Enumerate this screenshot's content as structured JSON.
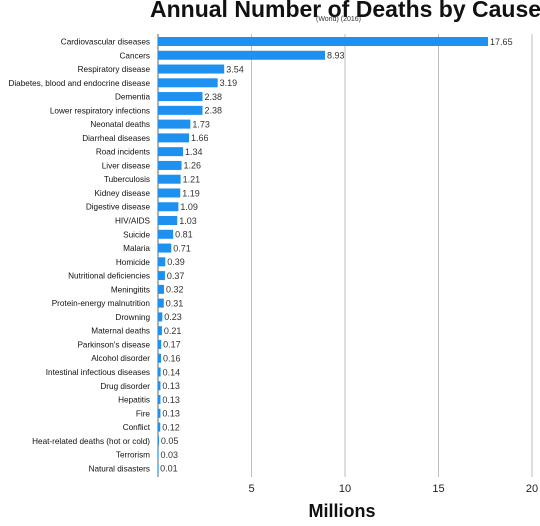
{
  "chart_data": {
    "type": "bar",
    "orientation": "horizontal",
    "title": "Annual Number of Deaths by Cause",
    "subtitle": "(World) (2016)",
    "xlabel": "Millions",
    "ylabel": "",
    "xlim": [
      0,
      20
    ],
    "xticks": [
      5,
      10,
      15,
      20
    ],
    "grid": true,
    "bar_color": "#1e90f0",
    "categories": [
      "Cardiovascular diseases",
      "Cancers",
      "Respiratory disease",
      "Diabetes, blood and endocrine disease",
      "Dementia",
      "Lower respiratory infections",
      "Neonatal deaths",
      "Diarrheal diseases",
      "Road incidents",
      "Liver disease",
      "Tuberculosis",
      "Kidney disease",
      "Digestive disease",
      "HIV/AIDS",
      "Suicide",
      "Malaria",
      "Homicide",
      "Nutritional deficiencies",
      "Meningitits",
      "Protein-energy malnutrition",
      "Drowning",
      "Maternal deaths",
      "Parkinson's disease",
      "Alcohol disorder",
      "Intestinal infectious diseases",
      "Drug disorder",
      "Hepatitis",
      "Fire",
      "Conflict",
      "Heat-related deaths (hot or cold)",
      "Terrorism",
      "Natural disasters"
    ],
    "values": [
      17.65,
      8.93,
      3.54,
      3.19,
      2.38,
      2.38,
      1.73,
      1.66,
      1.34,
      1.26,
      1.21,
      1.19,
      1.09,
      1.03,
      0.81,
      0.71,
      0.39,
      0.37,
      0.32,
      0.31,
      0.23,
      0.21,
      0.17,
      0.16,
      0.14,
      0.13,
      0.13,
      0.13,
      0.12,
      0.05,
      0.03,
      0.01
    ],
    "value_labels": [
      "17.65",
      "8.93",
      "3.54",
      "3.19",
      "2.38",
      "2.38",
      "1.73",
      "1.66",
      "1.34",
      "1.26",
      "1.21",
      "1.19",
      "1.09",
      "1.03",
      "0.81",
      "0.71",
      "0.39",
      "0.37",
      "0.32",
      "0.31",
      "0.23",
      "0.21",
      "0.17",
      "0.16",
      "0.14",
      "0.13",
      "0.13",
      "0.13",
      "0.12",
      "0.05",
      "0.03",
      "0.01"
    ]
  }
}
